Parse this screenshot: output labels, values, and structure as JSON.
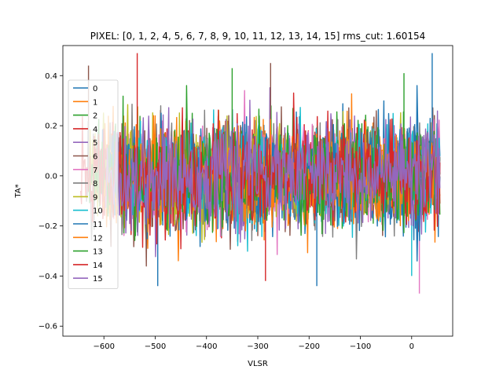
{
  "chart_data": {
    "type": "line",
    "title": "PIXEL: [0, 1, 2, 4, 5, 6, 7, 8, 9, 10, 11, 12, 13, 14, 15]   rms_cut: 1.60154",
    "xlabel": "VLSR",
    "ylabel": "TA*",
    "xlim": [
      -680,
      80
    ],
    "ylim": [
      -0.64,
      0.52
    ],
    "x_range": [
      -650,
      55
    ],
    "x_ticks": [
      -600,
      -500,
      -400,
      -300,
      -200,
      -100,
      0
    ],
    "x_tick_labels": [
      "−600",
      "−500",
      "−400",
      "−300",
      "−200",
      "−100",
      "0"
    ],
    "y_ticks": [
      -0.6,
      -0.4,
      -0.2,
      0.0,
      0.2,
      0.4
    ],
    "y_tick_labels": [
      "−0.6",
      "−0.4",
      "−0.2",
      "0.0",
      "0.2",
      "0.4"
    ],
    "grid": false,
    "legend_position": "left",
    "noise_sigma": 0.1,
    "series": [
      {
        "name": "0",
        "color": "#1f77b4"
      },
      {
        "name": "1",
        "color": "#ff7f0e"
      },
      {
        "name": "2",
        "color": "#2ca02c"
      },
      {
        "name": "4",
        "color": "#d62728"
      },
      {
        "name": "5",
        "color": "#9467bd"
      },
      {
        "name": "6",
        "color": "#8c564b"
      },
      {
        "name": "7",
        "color": "#e377c2"
      },
      {
        "name": "8",
        "color": "#7f7f7f"
      },
      {
        "name": "9",
        "color": "#bcbd22"
      },
      {
        "name": "10",
        "color": "#17becf"
      },
      {
        "name": "11",
        "color": "#1f77b4"
      },
      {
        "name": "12",
        "color": "#ff7f0e"
      },
      {
        "name": "13",
        "color": "#2ca02c"
      },
      {
        "name": "14",
        "color": "#d62728"
      },
      {
        "name": "15",
        "color": "#9467bd"
      }
    ],
    "spikes": [
      {
        "series": "14",
        "x": -535,
        "y": 0.49
      },
      {
        "series": "11",
        "x": 40,
        "y": 0.49
      },
      {
        "series": "6",
        "x": -630,
        "y": 0.44
      },
      {
        "series": "13",
        "x": -350,
        "y": 0.43
      },
      {
        "series": "6",
        "x": -275,
        "y": 0.45
      },
      {
        "series": "11",
        "x": -495,
        "y": -0.44
      },
      {
        "series": "11",
        "x": -185,
        "y": -0.44
      },
      {
        "series": "14",
        "x": -285,
        "y": -0.42
      },
      {
        "series": "7",
        "x": 15,
        "y": -0.47
      },
      {
        "series": "10",
        "x": 0,
        "y": -0.4
      },
      {
        "series": "13",
        "x": -15,
        "y": 0.41
      }
    ]
  }
}
